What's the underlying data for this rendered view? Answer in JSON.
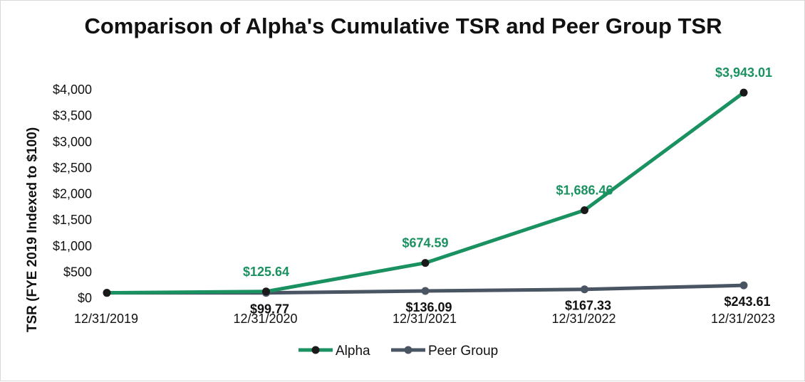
{
  "chart_data": {
    "type": "line",
    "title": "Comparison of Alpha's Cumulative TSR and Peer Group TSR",
    "xlabel": "",
    "ylabel": "TSR (FYE 2019 Indexed to $100)",
    "categories": [
      "12/31/2019",
      "12/31/2020",
      "12/31/2021",
      "12/31/2022",
      "12/31/2023"
    ],
    "ylim": [
      0,
      4000
    ],
    "yticks": [
      0,
      500,
      1000,
      1500,
      2000,
      2500,
      3000,
      3500,
      4000
    ],
    "ytick_labels": [
      "$0",
      "$500",
      "$1,000",
      "$1,500",
      "$2,000",
      "$2,500",
      "$3,000",
      "$3,500",
      "$4,000"
    ],
    "grid": false,
    "legend": "bottom",
    "series": [
      {
        "name": "Alpha",
        "color": "#1a9160",
        "values": [
          100,
          125.64,
          674.59,
          1686.46,
          3943.01
        ],
        "labels": [
          "",
          "$125.64",
          "$674.59",
          "$1,686.46",
          "$3,943.01"
        ]
      },
      {
        "name": "Peer Group",
        "color": "#4a5563",
        "values": [
          100,
          99.77,
          136.09,
          167.33,
          243.61
        ],
        "labels": [
          "",
          "$99.77",
          "$136.09",
          "$167.33",
          "$243.61"
        ]
      }
    ]
  }
}
